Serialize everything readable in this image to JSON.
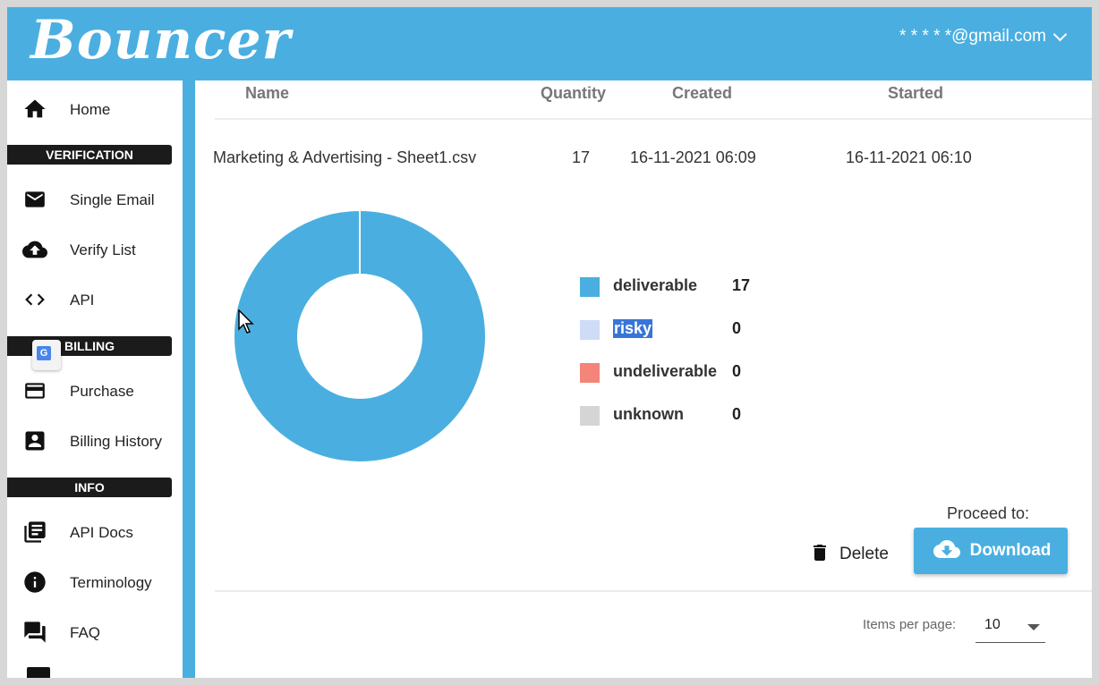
{
  "header": {
    "logo": "Bouncer",
    "account_email": "* * * * *@gmail.com"
  },
  "sidebar": {
    "items": [
      {
        "label": "Home",
        "icon": "home-icon"
      },
      {
        "label": "Single Email",
        "icon": "mail-icon"
      },
      {
        "label": "Verify List",
        "icon": "cloud-upload-icon"
      },
      {
        "label": "API",
        "icon": "code-icon"
      },
      {
        "label": "Purchase",
        "icon": "credit-card-icon"
      },
      {
        "label": "Billing History",
        "icon": "account-box-icon"
      },
      {
        "label": "API Docs",
        "icon": "library-books-icon"
      },
      {
        "label": "Terminology",
        "icon": "info-icon"
      },
      {
        "label": "FAQ",
        "icon": "forum-icon"
      }
    ],
    "sections": {
      "verification": "VERIFICATION",
      "billing": "BILLING",
      "info": "INFO"
    }
  },
  "table": {
    "columns": {
      "name": "Name",
      "quantity": "Quantity",
      "created": "Created",
      "started": "Started"
    },
    "row": {
      "name": "Marketing & Advertising - Sheet1.csv",
      "quantity": "17",
      "created": "16-11-2021 06:09",
      "started": "16-11-2021 06:10"
    }
  },
  "chart_data": {
    "type": "pie",
    "categories": [
      "deliverable",
      "risky",
      "undeliverable",
      "unknown"
    ],
    "values": [
      17,
      0,
      0,
      0
    ],
    "colors": [
      "#4aafe0",
      "#cfdcf7",
      "#f4857a",
      "#d5d5d5"
    ],
    "legend": "right"
  },
  "legend": [
    {
      "label": "deliverable",
      "count": "17",
      "color": "#4aafe0"
    },
    {
      "label": "risky",
      "count": "0",
      "color": "#cfdcf7"
    },
    {
      "label": "undeliverable",
      "count": "0",
      "color": "#f4857a"
    },
    {
      "label": "unknown",
      "count": "0",
      "color": "#d5d5d5"
    }
  ],
  "actions": {
    "proceed_label": "Proceed to:",
    "delete_label": "Delete",
    "download_label": "Download"
  },
  "pagination": {
    "items_per_page_label": "Items per page:",
    "items_per_page_value": "10"
  },
  "colors": {
    "brand": "#4aafe0",
    "selection": "#3875d7"
  }
}
